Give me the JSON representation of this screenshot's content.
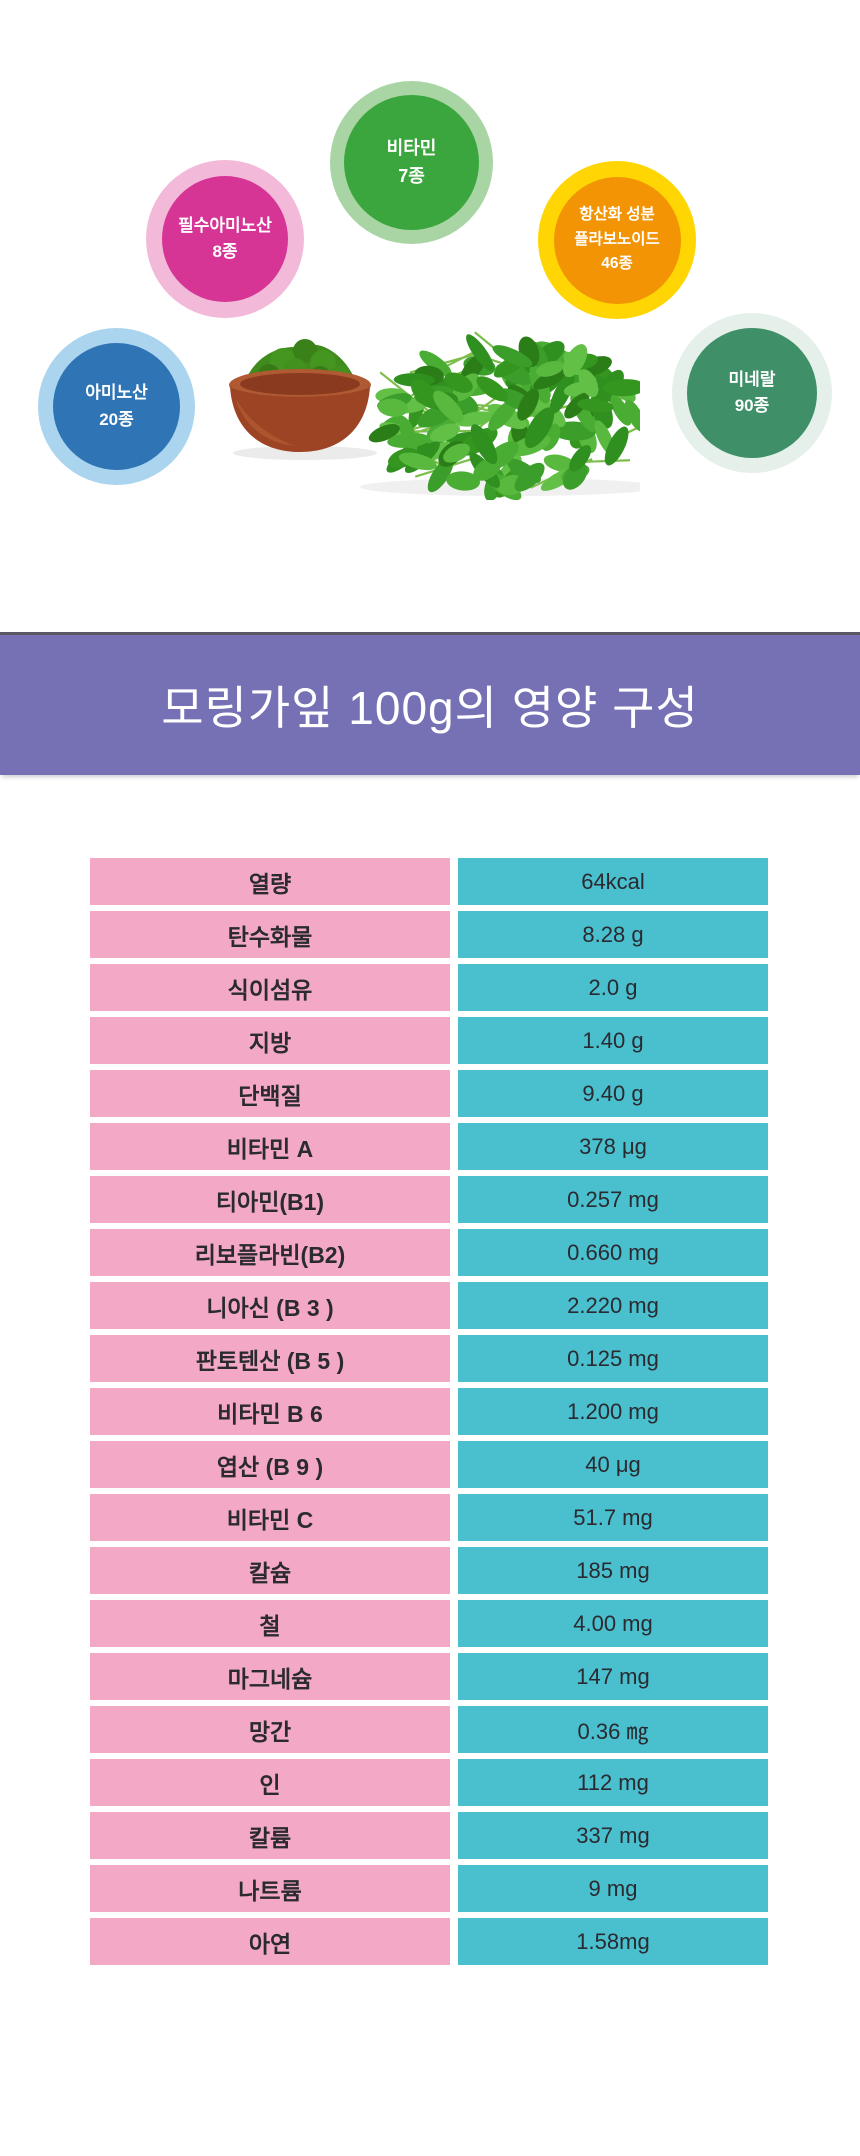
{
  "badges": [
    {
      "id": "vitamin",
      "lines": [
        "비타민",
        "7종"
      ],
      "inner_color": "#3BA63E",
      "ring_color": "#A9D5A4"
    },
    {
      "id": "essential-amino",
      "lines": [
        "필수아미노산",
        "8종"
      ],
      "inner_color": "#D63595",
      "ring_color": "#F3B9D8"
    },
    {
      "id": "antioxidant",
      "lines": [
        "항산화 성분",
        "플라보노이드",
        "46종"
      ],
      "inner_color": "#F29404",
      "ring_color": "#FFD504"
    },
    {
      "id": "amino",
      "lines": [
        "아미노산",
        "20종"
      ],
      "inner_color": "#2F74B5",
      "ring_color": "#ABD4EE"
    },
    {
      "id": "mineral",
      "lines": [
        "미네랄",
        "90종"
      ],
      "inner_color": "#3F8F68",
      "ring_color": "#E4F0E9"
    }
  ],
  "illustration": {
    "name": "moringa-bowl-and-leaves"
  },
  "banner": {
    "title": "모링가잎 100g의 영양 구성",
    "bg_color": "#7671B4",
    "top_border_color": "#5A5763",
    "text_color": "#FFFFFF"
  },
  "table": {
    "label_bg_color": "#F3A8C5",
    "value_bg_color": "#4ABFCE",
    "text_color": "#2A2A30",
    "rows": [
      {
        "label": "열량",
        "value": "64kcal"
      },
      {
        "label": "탄수화물",
        "value": "8.28 g"
      },
      {
        "label": "식이섬유",
        "value": "2.0 g"
      },
      {
        "label": "지방",
        "value": "1.40 g"
      },
      {
        "label": "단백질",
        "value": "9.40 g"
      },
      {
        "label": "비타민 A",
        "value": "378 μg"
      },
      {
        "label": "티아민(B1)",
        "value": "0.257 mg"
      },
      {
        "label": "리보플라빈(B2)",
        "value": "0.660 mg"
      },
      {
        "label": "니아신 (B 3 )",
        "value": "2.220 mg"
      },
      {
        "label": "판토텐산 (B 5 )",
        "value": "0.125 mg"
      },
      {
        "label": "비타민 B 6",
        "value": "1.200 mg"
      },
      {
        "label": "엽산 (B 9 )",
        "value": "40 μg"
      },
      {
        "label": "비타민 C",
        "value": "51.7 mg"
      },
      {
        "label": "칼슘",
        "value": "185 mg"
      },
      {
        "label": "철",
        "value": "4.00 mg"
      },
      {
        "label": "마그네슘",
        "value": "147 mg"
      },
      {
        "label": "망간",
        "value": "0.36 ㎎"
      },
      {
        "label": "인",
        "value": "112 mg"
      },
      {
        "label": "칼륨",
        "value": "337 mg"
      },
      {
        "label": "나트륨",
        "value": "9 mg"
      },
      {
        "label": "아연",
        "value": "1.58mg"
      }
    ]
  }
}
